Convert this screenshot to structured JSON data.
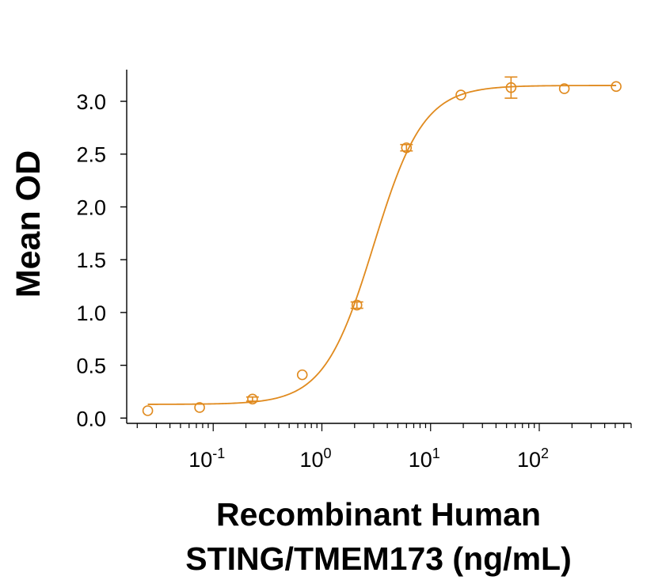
{
  "chart_data": {
    "type": "scatter",
    "title": "",
    "xlabel_line1": "Recombinant Human",
    "xlabel_line2": "STING/TMEM173 (ng/mL)",
    "ylabel": "Mean OD",
    "x_scale": "log",
    "xlim": [
      0.016,
      700
    ],
    "ylim": [
      -0.05,
      3.3
    ],
    "x_ticks": [
      {
        "value": 0.1,
        "base": "10",
        "exp": "-1"
      },
      {
        "value": 1,
        "base": "10",
        "exp": "0"
      },
      {
        "value": 10,
        "base": "10",
        "exp": "1"
      },
      {
        "value": 100,
        "base": "10",
        "exp": "2"
      }
    ],
    "y_ticks": [
      {
        "value": 0.0,
        "label": "0.0"
      },
      {
        "value": 0.5,
        "label": "0.5"
      },
      {
        "value": 1.0,
        "label": "1.0"
      },
      {
        "value": 1.5,
        "label": "1.5"
      },
      {
        "value": 2.0,
        "label": "2.0"
      },
      {
        "value": 2.5,
        "label": "2.5"
      },
      {
        "value": 3.0,
        "label": "3.0"
      }
    ],
    "grid": false,
    "color": "#E08A1E",
    "series": [
      {
        "x": [
          0.025,
          0.075,
          0.23,
          0.66,
          2.1,
          6.0,
          19,
          55,
          170,
          510
        ],
        "y": [
          0.07,
          0.1,
          0.18,
          0.41,
          1.07,
          2.56,
          3.06,
          3.13,
          3.12,
          3.14
        ],
        "err": [
          0.0,
          0.0,
          0.02,
          0.0,
          0.03,
          0.03,
          0.0,
          0.1,
          0.0,
          0.0
        ]
      }
    ],
    "fit_curve": {
      "bottom": 0.13,
      "top": 3.15,
      "ec50": 3.0,
      "hill": 1.9
    }
  }
}
